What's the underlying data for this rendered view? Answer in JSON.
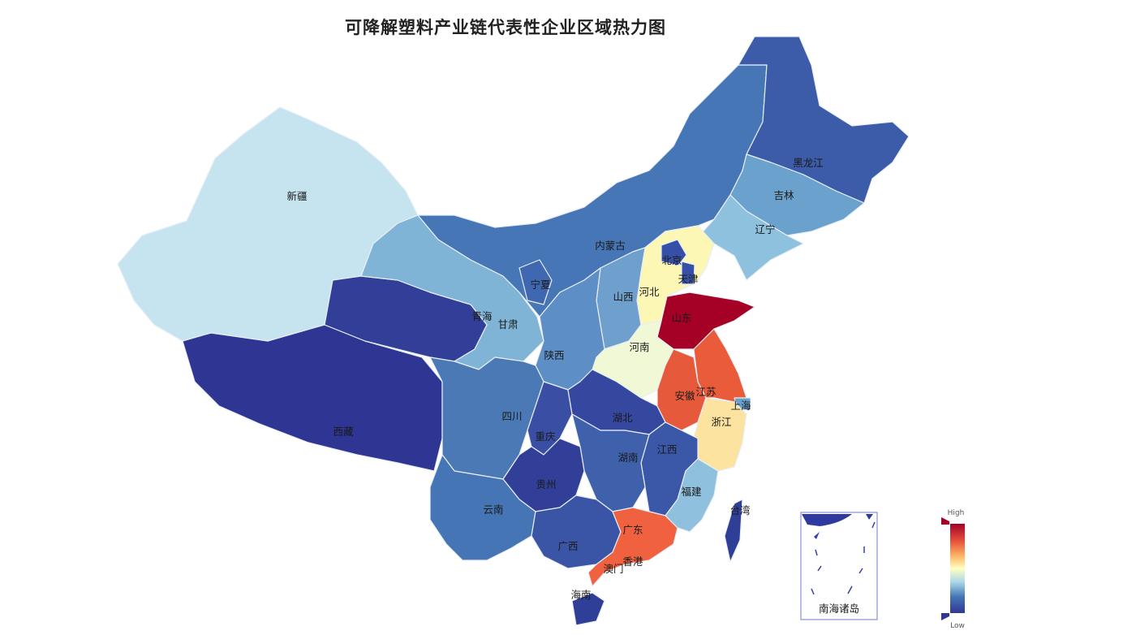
{
  "title": "可降解塑料产业链代表性企业区域热力图",
  "chart_data": {
    "type": "choropleth",
    "scale": {
      "high_label": "High",
      "low_label": "Low",
      "colors": [
        "#313695",
        "#4575b4",
        "#74add1",
        "#abd9e9",
        "#e0f3f8",
        "#ffffbf",
        "#fee090",
        "#fdae61",
        "#f46d43",
        "#d73027",
        "#a50026"
      ]
    },
    "inset_label": "南海诸岛",
    "regions": [
      {
        "name": "新疆",
        "level": 0.4,
        "color": "#c5e4ef"
      },
      {
        "name": "西藏",
        "level": 0.02,
        "color": "#2e3592"
      },
      {
        "name": "青海",
        "level": 0.05,
        "color": "#313f98"
      },
      {
        "name": "甘肃",
        "level": 0.3,
        "color": "#80b4d6"
      },
      {
        "name": "内蒙古",
        "level": 0.15,
        "color": "#4676b5"
      },
      {
        "name": "黑龙江",
        "level": 0.1,
        "color": "#3c5ba8"
      },
      {
        "name": "吉林",
        "level": 0.25,
        "color": "#6aa2cd"
      },
      {
        "name": "辽宁",
        "level": 0.32,
        "color": "#8ec1dd"
      },
      {
        "name": "河北",
        "level": 0.55,
        "color": "#fdf7b6"
      },
      {
        "name": "北京",
        "level": 0.07,
        "color": "#3550a6"
      },
      {
        "name": "天津",
        "level": 0.07,
        "color": "#3550a6"
      },
      {
        "name": "山西",
        "level": 0.22,
        "color": "#6f9fcc"
      },
      {
        "name": "山东",
        "level": 1.0,
        "color": "#a50026"
      },
      {
        "name": "河南",
        "level": 0.5,
        "color": "#f1f8d6"
      },
      {
        "name": "陕西",
        "level": 0.2,
        "color": "#5d8ec5"
      },
      {
        "name": "宁夏",
        "level": 0.12,
        "color": "#4068b0"
      },
      {
        "name": "四川",
        "level": 0.16,
        "color": "#4a79b6"
      },
      {
        "name": "重庆",
        "level": 0.06,
        "color": "#3a4fa3"
      },
      {
        "name": "湖北",
        "level": 0.05,
        "color": "#3647a0"
      },
      {
        "name": "安徽",
        "level": 0.85,
        "color": "#e65a3b"
      },
      {
        "name": "江苏",
        "level": 0.84,
        "color": "#ea5b3a"
      },
      {
        "name": "上海",
        "level": 0.25,
        "color": "#6aa0cc"
      },
      {
        "name": "浙江",
        "level": 0.62,
        "color": "#fde3a0"
      },
      {
        "name": "江西",
        "level": 0.09,
        "color": "#3b58a8"
      },
      {
        "name": "湖南",
        "level": 0.11,
        "color": "#3f60aa"
      },
      {
        "name": "贵州",
        "level": 0.04,
        "color": "#323f98"
      },
      {
        "name": "云南",
        "level": 0.15,
        "color": "#4575b4"
      },
      {
        "name": "广西",
        "level": 0.09,
        "color": "#3a55a5"
      },
      {
        "name": "广东",
        "level": 0.82,
        "color": "#f0623f"
      },
      {
        "name": "福建",
        "level": 0.32,
        "color": "#8fc0dd"
      },
      {
        "name": "海南",
        "level": 0.04,
        "color": "#2f3f98"
      },
      {
        "name": "台湾",
        "level": 0.04,
        "color": "#2f3f98"
      },
      {
        "name": "香港",
        "level": null,
        "color": null
      },
      {
        "name": "澳门",
        "level": null,
        "color": null
      }
    ]
  }
}
